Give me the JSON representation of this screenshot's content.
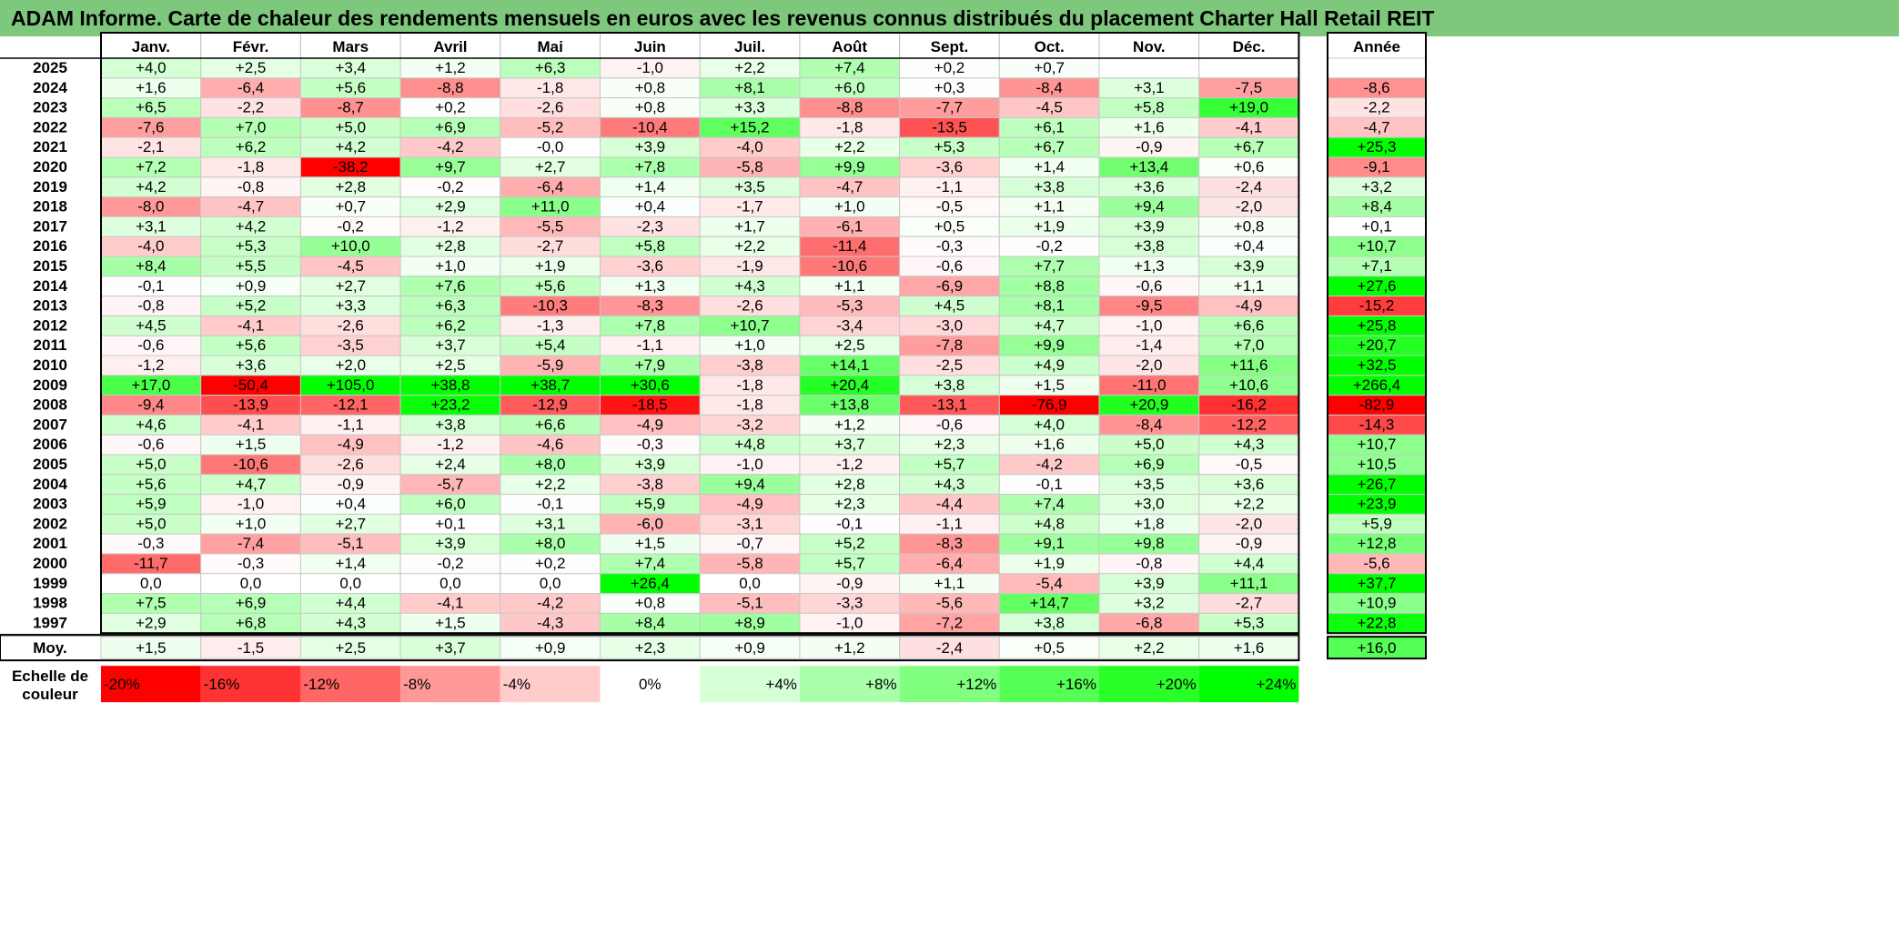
{
  "title": "ADAM Informe. Carte de chaleur des rendements mensuels en euros avec les revenus connus distribués du placement Charter Hall Retail REIT",
  "chart_data": {
    "type": "heatmap",
    "columns": [
      "Janv.",
      "Févr.",
      "Mars",
      "Avril",
      "Mai",
      "Juin",
      "Juil.",
      "Août",
      "Sept.",
      "Oct.",
      "Nov.",
      "Déc."
    ],
    "annual_header": "Année",
    "rows": [
      {
        "year": "2025",
        "values": [
          "+4,0",
          "+2,5",
          "+3,4",
          "+1,2",
          "+6,3",
          "-1,0",
          "+2,2",
          "+7,4",
          "+0,2",
          "+0,7",
          "",
          ""
        ],
        "annual": ""
      },
      {
        "year": "2024",
        "values": [
          "+1,6",
          "-6,4",
          "+5,6",
          "-8,8",
          "-1,8",
          "+0,8",
          "+8,1",
          "+6,0",
          "+0,3",
          "-8,4",
          "+3,1",
          "-7,5"
        ],
        "annual": "-8,6"
      },
      {
        "year": "2023",
        "values": [
          "+6,5",
          "-2,2",
          "-8,7",
          "+0,2",
          "-2,6",
          "+0,8",
          "+3,3",
          "-8,8",
          "-7,7",
          "-4,5",
          "+5,8",
          "+19,0"
        ],
        "annual": "-2,2"
      },
      {
        "year": "2022",
        "values": [
          "-7,6",
          "+7,0",
          "+5,0",
          "+6,9",
          "-5,2",
          "-10,4",
          "+15,2",
          "-1,8",
          "-13,5",
          "+6,1",
          "+1,6",
          "-4,1"
        ],
        "annual": "-4,7"
      },
      {
        "year": "2021",
        "values": [
          "-2,1",
          "+6,2",
          "+4,2",
          "-4,2",
          "-0,0",
          "+3,9",
          "-4,0",
          "+2,2",
          "+5,3",
          "+6,7",
          "-0,9",
          "+6,7"
        ],
        "annual": "+25,3"
      },
      {
        "year": "2020",
        "values": [
          "+7,2",
          "-1,8",
          "-38,2",
          "+9,7",
          "+2,7",
          "+7,8",
          "-5,8",
          "+9,9",
          "-3,6",
          "+1,4",
          "+13,4",
          "+0,6"
        ],
        "annual": "-9,1"
      },
      {
        "year": "2019",
        "values": [
          "+4,2",
          "-0,8",
          "+2,8",
          "-0,2",
          "-6,4",
          "+1,4",
          "+3,5",
          "-4,7",
          "-1,1",
          "+3,8",
          "+3,6",
          "-2,4"
        ],
        "annual": "+3,2"
      },
      {
        "year": "2018",
        "values": [
          "-8,0",
          "-4,7",
          "+0,7",
          "+2,9",
          "+11,0",
          "+0,4",
          "-1,7",
          "+1,0",
          "-0,5",
          "+1,1",
          "+9,4",
          "-2,0"
        ],
        "annual": "+8,4"
      },
      {
        "year": "2017",
        "values": [
          "+3,1",
          "+4,2",
          "-0,2",
          "-1,2",
          "-5,5",
          "-2,3",
          "+1,7",
          "-6,1",
          "+0,5",
          "+1,9",
          "+3,9",
          "+0,8"
        ],
        "annual": "+0,1"
      },
      {
        "year": "2016",
        "values": [
          "-4,0",
          "+5,3",
          "+10,0",
          "+2,8",
          "-2,7",
          "+5,8",
          "+2,2",
          "-11,4",
          "-0,3",
          "-0,2",
          "+3,8",
          "+0,4"
        ],
        "annual": "+10,7"
      },
      {
        "year": "2015",
        "values": [
          "+8,4",
          "+5,5",
          "-4,5",
          "+1,0",
          "+1,9",
          "-3,6",
          "-1,9",
          "-10,6",
          "-0,6",
          "+7,7",
          "+1,3",
          "+3,9"
        ],
        "annual": "+7,1"
      },
      {
        "year": "2014",
        "values": [
          "-0,1",
          "+0,9",
          "+2,7",
          "+7,6",
          "+5,6",
          "+1,3",
          "+4,3",
          "+1,1",
          "-6,9",
          "+8,8",
          "-0,6",
          "+1,1"
        ],
        "annual": "+27,6"
      },
      {
        "year": "2013",
        "values": [
          "-0,8",
          "+5,2",
          "+3,3",
          "+6,3",
          "-10,3",
          "-8,3",
          "-2,6",
          "-5,3",
          "+4,5",
          "+8,1",
          "-9,5",
          "-4,9"
        ],
        "annual": "-15,2"
      },
      {
        "year": "2012",
        "values": [
          "+4,5",
          "-4,1",
          "-2,6",
          "+6,2",
          "-1,3",
          "+7,8",
          "+10,7",
          "-3,4",
          "-3,0",
          "+4,7",
          "-1,0",
          "+6,6"
        ],
        "annual": "+25,8"
      },
      {
        "year": "2011",
        "values": [
          "-0,6",
          "+5,6",
          "-3,5",
          "+3,7",
          "+5,4",
          "-1,1",
          "+1,0",
          "+2,5",
          "-7,8",
          "+9,9",
          "-1,4",
          "+7,0"
        ],
        "annual": "+20,7"
      },
      {
        "year": "2010",
        "values": [
          "-1,2",
          "+3,6",
          "+2,0",
          "+2,5",
          "-5,9",
          "+7,9",
          "-3,8",
          "+14,1",
          "-2,5",
          "+4,9",
          "-2,0",
          "+11,6"
        ],
        "annual": "+32,5"
      },
      {
        "year": "2009",
        "values": [
          "+17,0",
          "-50,4",
          "+105,0",
          "+38,8",
          "+38,7",
          "+30,6",
          "-1,8",
          "+20,4",
          "+3,8",
          "+1,5",
          "-11,0",
          "+10,6"
        ],
        "annual": "+266,4"
      },
      {
        "year": "2008",
        "values": [
          "-9,4",
          "-13,9",
          "-12,1",
          "+23,2",
          "-12,9",
          "-18,5",
          "-1,8",
          "+13,8",
          "-13,1",
          "-76,9",
          "+20,9",
          "-16,2"
        ],
        "annual": "-82,9"
      },
      {
        "year": "2007",
        "values": [
          "+4,6",
          "-4,1",
          "-1,1",
          "+3,8",
          "+6,6",
          "-4,9",
          "-3,2",
          "+1,2",
          "-0,6",
          "+4,0",
          "-8,4",
          "-12,2"
        ],
        "annual": "-14,3"
      },
      {
        "year": "2006",
        "values": [
          "-0,6",
          "+1,5",
          "-4,9",
          "-1,2",
          "-4,6",
          "-0,3",
          "+4,8",
          "+3,7",
          "+2,3",
          "+1,6",
          "+5,0",
          "+4,3"
        ],
        "annual": "+10,7"
      },
      {
        "year": "2005",
        "values": [
          "+5,0",
          "-10,6",
          "-2,6",
          "+2,4",
          "+8,0",
          "+3,9",
          "-1,0",
          "-1,2",
          "+5,7",
          "-4,2",
          "+6,9",
          "-0,5"
        ],
        "annual": "+10,5"
      },
      {
        "year": "2004",
        "values": [
          "+5,6",
          "+4,7",
          "-0,9",
          "-5,7",
          "+2,2",
          "-3,8",
          "+9,4",
          "+2,8",
          "+4,3",
          "-0,1",
          "+3,5",
          "+3,6"
        ],
        "annual": "+26,7"
      },
      {
        "year": "2003",
        "values": [
          "+5,9",
          "-1,0",
          "+0,4",
          "+6,0",
          "-0,1",
          "+5,9",
          "-4,9",
          "+2,3",
          "-4,4",
          "+7,4",
          "+3,0",
          "+2,2"
        ],
        "annual": "+23,9"
      },
      {
        "year": "2002",
        "values": [
          "+5,0",
          "+1,0",
          "+2,7",
          "+0,1",
          "+3,1",
          "-6,0",
          "-3,1",
          "-0,1",
          "-1,1",
          "+4,8",
          "+1,8",
          "-2,0"
        ],
        "annual": "+5,9"
      },
      {
        "year": "2001",
        "values": [
          "-0,3",
          "-7,4",
          "-5,1",
          "+3,9",
          "+8,0",
          "+1,5",
          "-0,7",
          "+5,2",
          "-8,3",
          "+9,1",
          "+9,8",
          "-0,9"
        ],
        "annual": "+12,8"
      },
      {
        "year": "2000",
        "values": [
          "-11,7",
          "-0,3",
          "+1,4",
          "-0,2",
          "+0,2",
          "+7,4",
          "-5,8",
          "+5,7",
          "-6,4",
          "+1,9",
          "-0,8",
          "+4,4"
        ],
        "annual": "-5,6"
      },
      {
        "year": "1999",
        "values": [
          "0,0",
          "0,0",
          "0,0",
          "0,0",
          "0,0",
          "+26,4",
          "0,0",
          "-0,9",
          "+1,1",
          "-5,4",
          "+3,9",
          "+11,1"
        ],
        "annual": "+37,7"
      },
      {
        "year": "1998",
        "values": [
          "+7,5",
          "+6,9",
          "+4,4",
          "-4,1",
          "-4,2",
          "+0,8",
          "-5,1",
          "-3,3",
          "-5,6",
          "+14,7",
          "+3,2",
          "-2,7"
        ],
        "annual": "+10,9"
      },
      {
        "year": "1997",
        "values": [
          "+2,9",
          "+6,8",
          "+4,3",
          "+1,5",
          "-4,3",
          "+8,4",
          "+8,9",
          "-1,0",
          "-7,2",
          "+3,8",
          "-6,8",
          "+5,3"
        ],
        "annual": "+22,8"
      }
    ],
    "average_row": {
      "label": "Moy.",
      "values": [
        "+1,5",
        "-1,5",
        "+2,5",
        "+3,7",
        "+0,9",
        "+2,3",
        "+0,9",
        "+1,2",
        "-2,4",
        "+0,5",
        "+2,2",
        "+1,6"
      ],
      "annual": "+16,0"
    },
    "color_scale": {
      "label_line1": "Echelle de",
      "label_line2": "couleur",
      "stops": [
        "-20%",
        "-16%",
        "-12%",
        "-8%",
        "-4%",
        "0%",
        "+4%",
        "+8%",
        "+12%",
        "+16%",
        "+20%",
        "+24%"
      ],
      "stop_values": [
        -20,
        -16,
        -12,
        -8,
        -4,
        0,
        4,
        8,
        12,
        16,
        20,
        24
      ]
    },
    "colors": {
      "negative_max": "#ff0000",
      "neutral": "#ffffff",
      "positive_max": "#00ff00",
      "title_bar": "#7dc87d"
    }
  }
}
